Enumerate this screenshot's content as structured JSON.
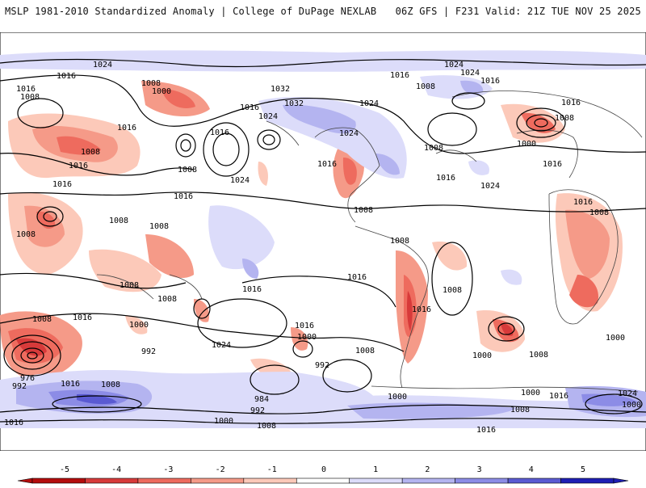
{
  "header": {
    "left_title": "MSLP 1981-2010 Standardized Anomaly | College of DuPage NEXLAB",
    "right_title": "06Z GFS | F231 Valid: 21Z TUE NOV 25 2025"
  },
  "map": {
    "projection": "global cylindrical",
    "field": "MSLP standardized anomaly",
    "isobar_labels": [
      "1024",
      "1016",
      "1008",
      "1032",
      "1008",
      "1000",
      "1016",
      "1032",
      "1024",
      "1024",
      "1016",
      "1008",
      "1016",
      "1016",
      "1008",
      "1016",
      "1008",
      "1016",
      "1016",
      "1024",
      "1024",
      "1024",
      "1016",
      "1016",
      "1008",
      "1016",
      "1008",
      "1008",
      "1008",
      "1016",
      "1008",
      "1016",
      "1016",
      "1008",
      "1008",
      "1008",
      "1000",
      "1016",
      "1008",
      "1016",
      "1008",
      "1008",
      "1000",
      "1016",
      "1016",
      "1024",
      "1000",
      "992",
      "1008",
      "1000",
      "992",
      "976",
      "992",
      "1016",
      "1008",
      "1016",
      "984",
      "992",
      "1000",
      "1008",
      "1000",
      "1000",
      "1008",
      "1016",
      "1024",
      "1016",
      "1000",
      "1008",
      "1000"
    ]
  },
  "colorbar": {
    "tick_labels": [
      "-5",
      "-4",
      "-3",
      "-2",
      "-1",
      "0",
      "1",
      "2",
      "3",
      "4",
      "5"
    ],
    "colors": [
      "#b40c0c",
      "#d73a3a",
      "#ee6b5e",
      "#f59a88",
      "#fcc9b9",
      "#ffffff",
      "#dcdcfa",
      "#b4b4f0",
      "#8c8ce6",
      "#5a5ad2",
      "#1e1eb4"
    ]
  }
}
